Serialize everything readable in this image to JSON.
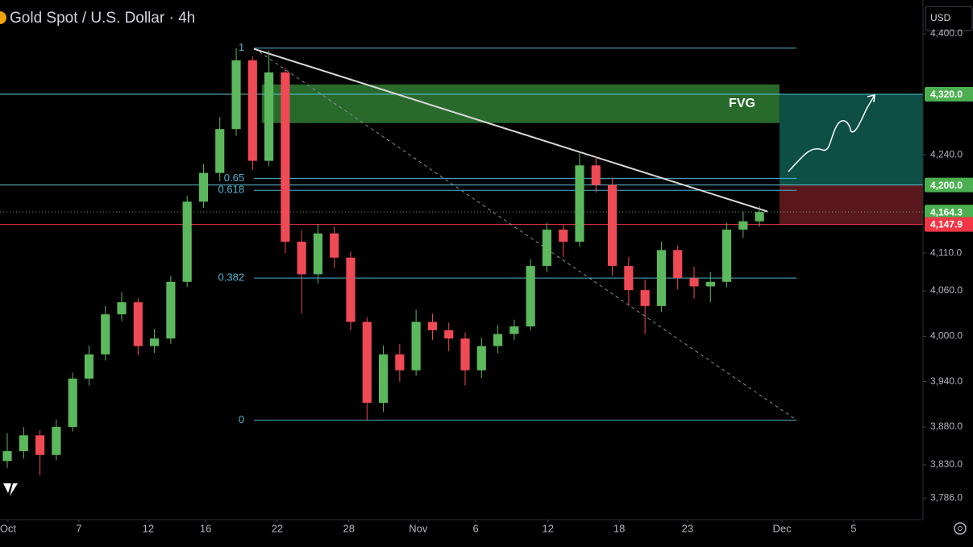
{
  "chart_data": {
    "type": "candlestick",
    "title": "Gold Spot / U.S. Dollar · 4h",
    "currency": "USD",
    "up_color": "#5cb85c",
    "down_color": "#ef4a55",
    "x": [
      0,
      4.5,
      9,
      13.5,
      18,
      22.5,
      27,
      31.5,
      36,
      40.5,
      45,
      49.5,
      54,
      58.5,
      63,
      67.5,
      72,
      76.5,
      81,
      85.5,
      90,
      94.5,
      99,
      103.5,
      108,
      112.5,
      117,
      121.5,
      126,
      130.5,
      135,
      139.5,
      144,
      148.5,
      153,
      157.5,
      162,
      166.5,
      171,
      175.5,
      180,
      184.5,
      189,
      193.5,
      198,
      202.5,
      207
    ],
    "open": [
      3835,
      3848,
      3869,
      3843,
      3880,
      3944,
      3976,
      4029,
      4045,
      3987,
      3997,
      4072,
      4178,
      4216,
      4274,
      4365,
      4232,
      4349,
      4125,
      4082,
      4136,
      4104,
      4019,
      3912,
      3976,
      3955,
      4019,
      4008,
      3997,
      3955,
      3987,
      4003,
      4013,
      4093,
      4141,
      4125,
      4226,
      4200,
      4093,
      4061,
      4040,
      4114,
      4077,
      4066,
      4072,
      4141,
      4152
    ],
    "high": [
      3872,
      3880,
      3876,
      3890,
      3952,
      3988,
      4040,
      4058,
      4050,
      4010,
      4080,
      4186,
      4228,
      4290,
      4381,
      4370,
      4378,
      4355,
      4140,
      4148,
      4145,
      4112,
      4025,
      3988,
      3990,
      4035,
      4030,
      4018,
      4005,
      3998,
      4015,
      4022,
      4102,
      4150,
      4148,
      4244,
      4238,
      4210,
      4105,
      4075,
      4125,
      4120,
      4092,
      4085,
      4150,
      4165,
      4172
    ],
    "low": [
      3826,
      3838,
      3816,
      3836,
      3874,
      3935,
      3968,
      4020,
      3975,
      3978,
      3990,
      4065,
      4170,
      4205,
      4265,
      4220,
      4225,
      4110,
      4030,
      4070,
      4090,
      4008,
      3889,
      3900,
      3940,
      3948,
      3995,
      3980,
      3935,
      3945,
      3978,
      3995,
      4008,
      4085,
      4105,
      4118,
      4190,
      4080,
      4040,
      4003,
      4032,
      4062,
      4050,
      4045,
      4065,
      4130,
      4145
    ],
    "close": [
      3848,
      3869,
      3843,
      3880,
      3944,
      3976,
      4029,
      4045,
      3987,
      3997,
      4072,
      4178,
      4216,
      4274,
      4365,
      4232,
      4349,
      4125,
      4082,
      4136,
      4104,
      4019,
      3912,
      3976,
      3955,
      4019,
      4008,
      3997,
      3955,
      3987,
      4003,
      4013,
      4093,
      4141,
      4125,
      4226,
      4200,
      4093,
      4061,
      4040,
      4114,
      4077,
      4066,
      4072,
      4141,
      4152,
      4164.3
    ],
    "xlim": [
      -2,
      252
    ],
    "xticks": [
      {
        "value": 0.2,
        "label": "Oct"
      },
      {
        "value": 19.7,
        "label": "7"
      },
      {
        "value": 38.8,
        "label": "12"
      },
      {
        "value": 54.6,
        "label": "16"
      },
      {
        "value": 74.3,
        "label": "22"
      },
      {
        "value": 94,
        "label": "28"
      },
      {
        "value": 113.1,
        "label": "Nov"
      },
      {
        "value": 128.9,
        "label": "6"
      },
      {
        "value": 148.8,
        "label": "12"
      },
      {
        "value": 168.4,
        "label": "18"
      },
      {
        "value": 187.2,
        "label": "23"
      },
      {
        "value": 213.2,
        "label": "Dec"
      },
      {
        "value": 232.9,
        "label": "5"
      }
    ],
    "ylim": [
      3757.5,
      4444.7
    ],
    "yticks": [
      {
        "value": 4400,
        "label": "4,400.0"
      },
      {
        "value": 4240,
        "label": "4,240.0"
      },
      {
        "value": 4110,
        "label": "4,110.0"
      },
      {
        "value": 4060,
        "label": "4,060.0"
      },
      {
        "value": 4000,
        "label": "4,000.0"
      },
      {
        "value": 3940,
        "label": "3,940.0"
      },
      {
        "value": 3880,
        "label": "3,880.0"
      },
      {
        "value": 3830,
        "label": "3,830.0"
      },
      {
        "value": 3786,
        "label": "3,786.0"
      }
    ],
    "fib": {
      "levels": [
        1,
        0.65,
        0.618,
        0.382,
        0
      ],
      "low": 3889,
      "high": 4381,
      "x": [
        67.9,
        217.2
      ],
      "color": "#4fb3cf"
    },
    "levels": [
      {
        "value": 4320,
        "color": "#5fc6d8"
      },
      {
        "value": 4200,
        "color": "#5fc6d8"
      },
      {
        "value": 4147.9,
        "color": "#f23645"
      }
    ],
    "current_price": 4164.3,
    "price_labels": [
      {
        "value": 4320,
        "label": "4,320.0",
        "color": "#4caf50"
      },
      {
        "value": 4200,
        "label": "4,200.0",
        "color": "#4caf50"
      },
      {
        "value": 4164.3,
        "label": "4,164.3",
        "color": "#4caf50"
      },
      {
        "value": 4147.9,
        "label": "4,147.9",
        "color": "#f23645"
      }
    ],
    "fvg": {
      "label": "FVG",
      "x": [
        70.1,
        212.5
      ],
      "y": [
        4282,
        4333
      ],
      "color": "#2e7d32"
    },
    "trend_line": {
      "x": [
        67.9,
        209.2
      ],
      "y": [
        4380,
        4165
      ],
      "color": "#d9d9d9"
    },
    "diagonal": {
      "x": [
        67.9,
        217.2
      ],
      "y": [
        4381,
        3889
      ],
      "color": "#8a8f98"
    },
    "position": {
      "x": 212.5,
      "target": 4320,
      "entry": 4200,
      "stop": 4147.9,
      "profit_color": "#0d4f44",
      "loss_color": "#5a181d"
    }
  }
}
